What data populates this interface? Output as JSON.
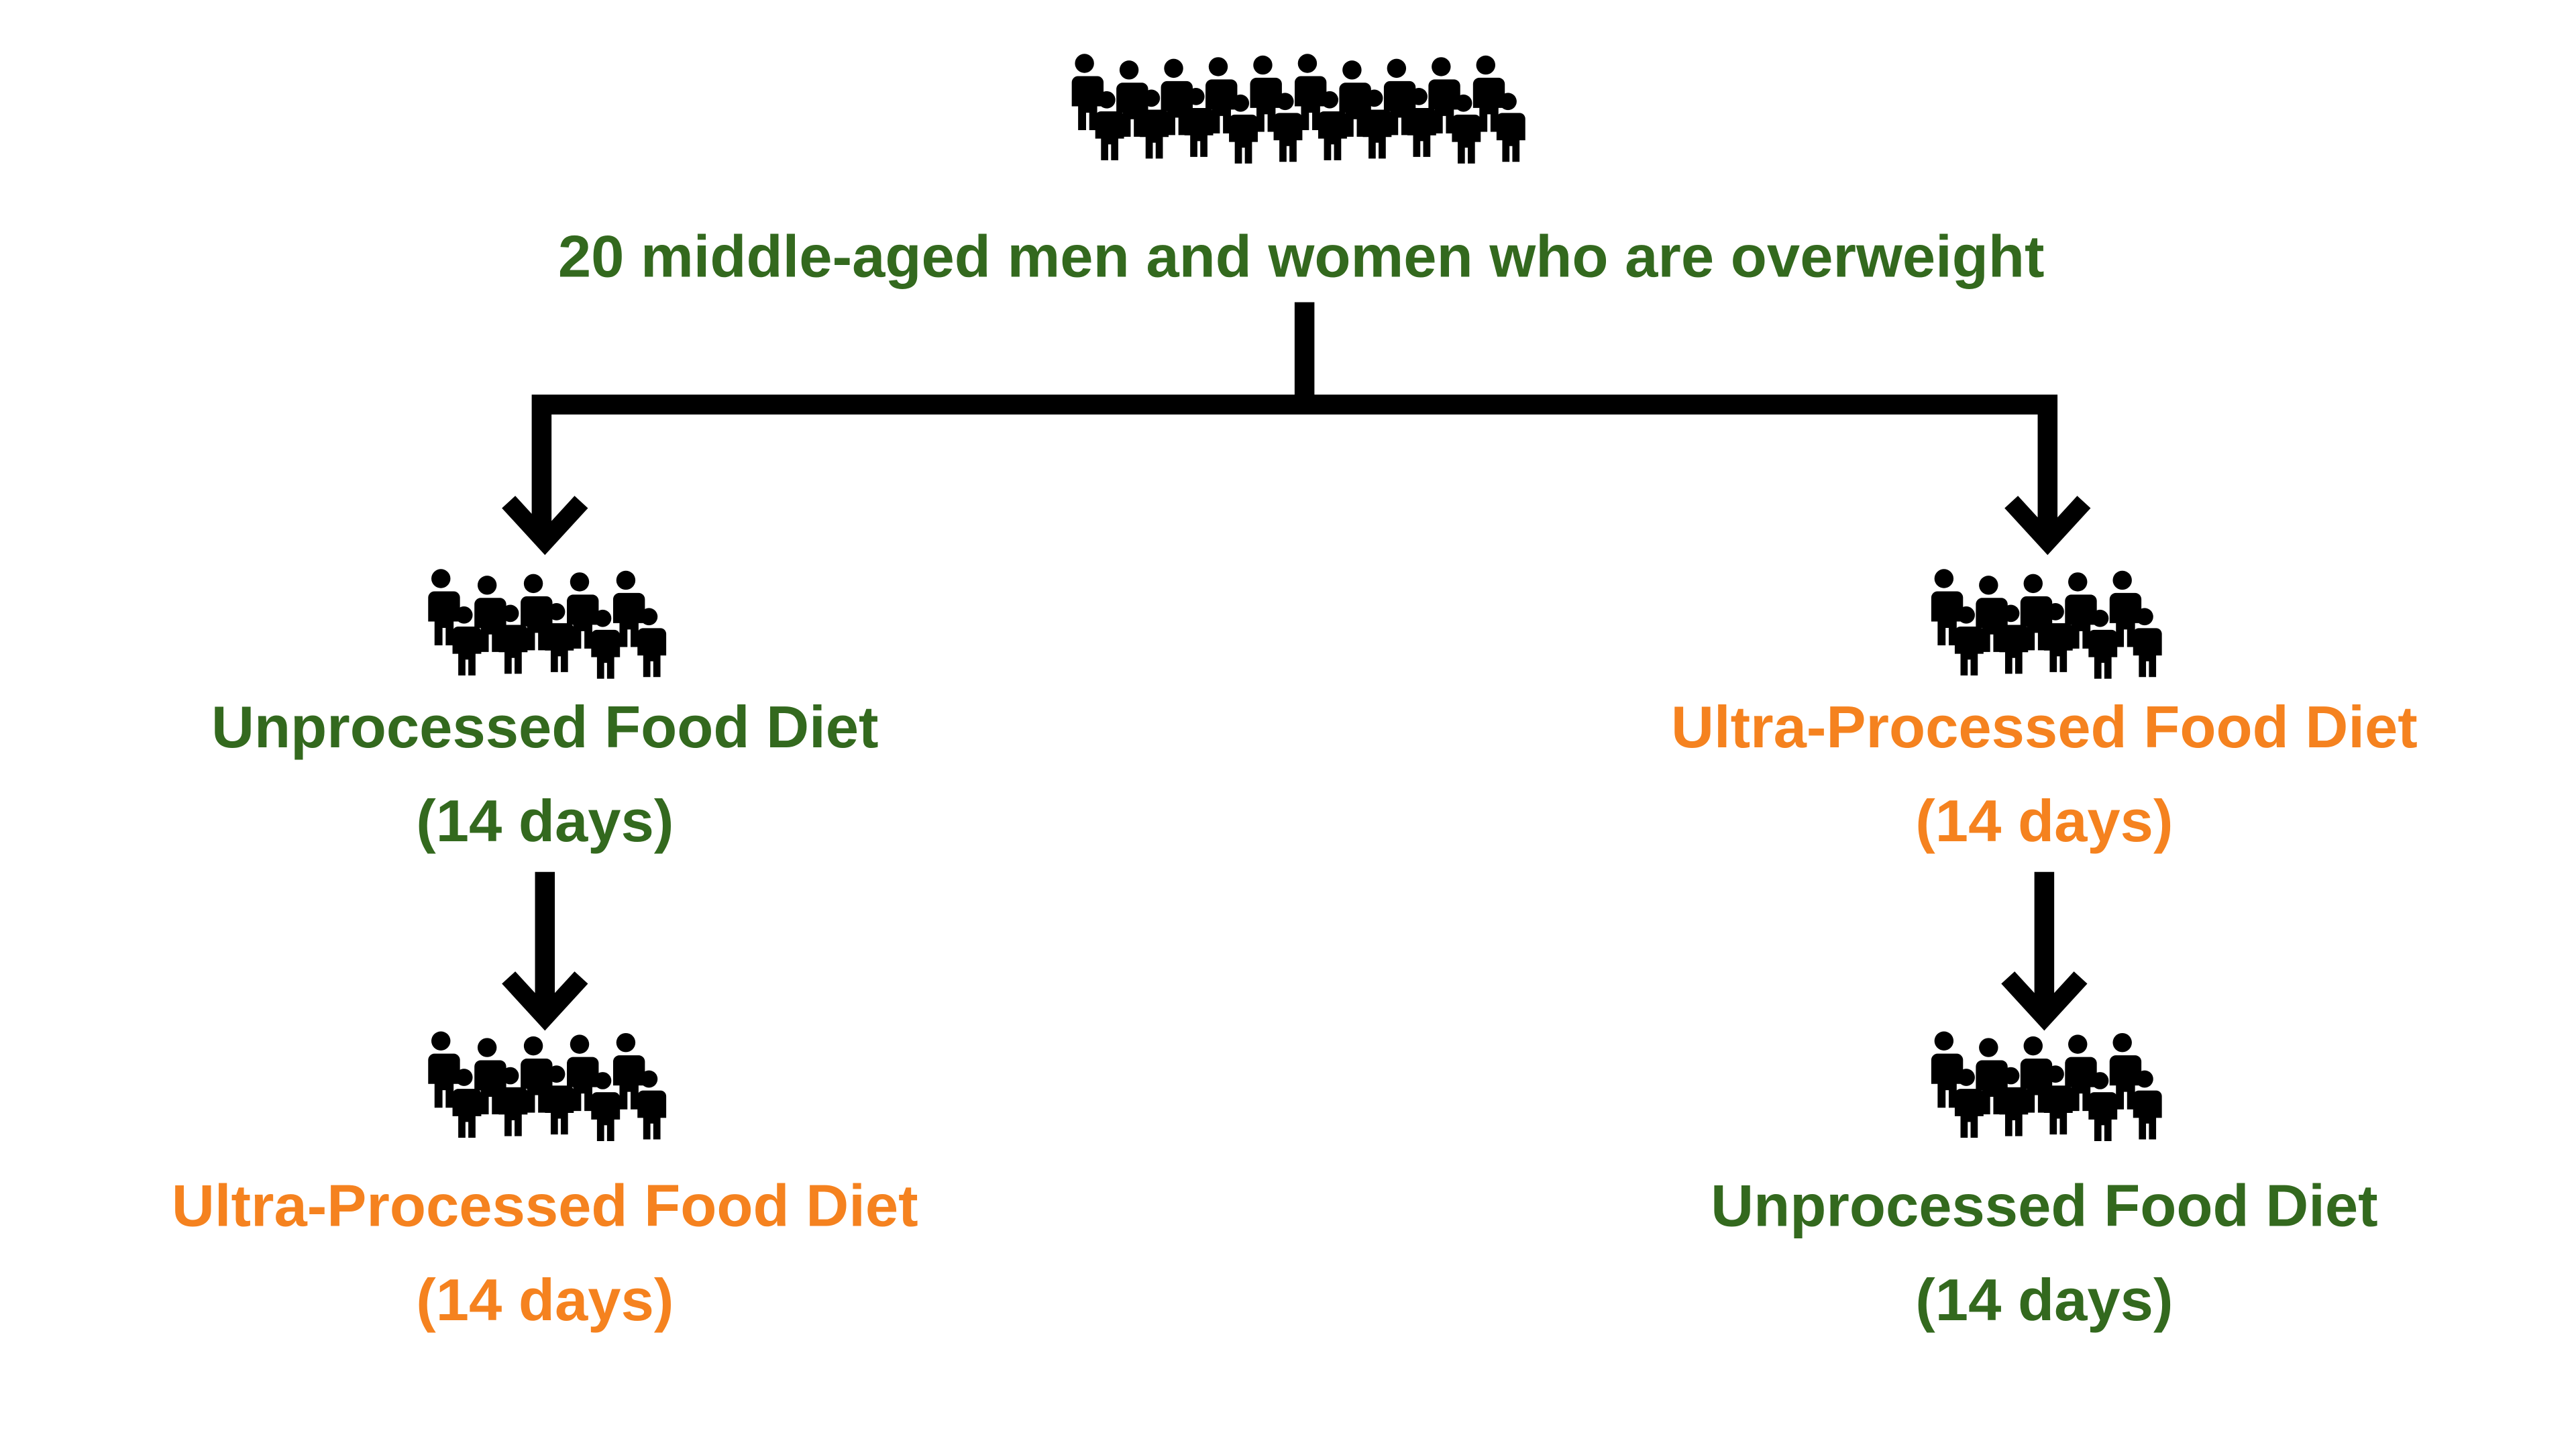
{
  "root": {
    "label": "20 middle-aged men and women who are overweight"
  },
  "groups": [
    {
      "steps": [
        {
          "label": "Unprocessed Food Diet",
          "duration": "(14 days)"
        },
        {
          "label": "Ultra-Processed Food Diet",
          "duration": "(14 days)"
        }
      ]
    },
    {
      "steps": [
        {
          "label": "Ultra-Processed Food Diet",
          "duration": "(14 days)"
        },
        {
          "label": "Unprocessed Food Diet",
          "duration": "(14 days)"
        }
      ]
    }
  ]
}
